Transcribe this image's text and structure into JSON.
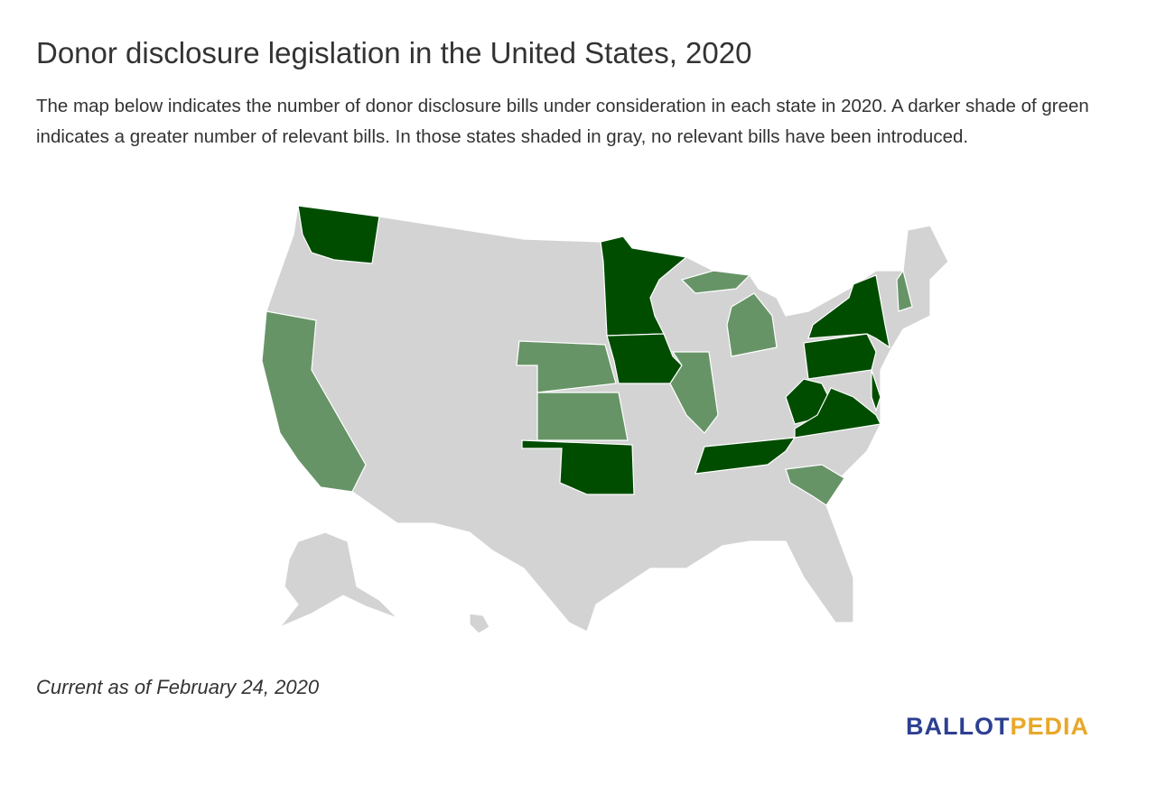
{
  "header": {
    "title": "Donor disclosure legislation in the United States, 2020",
    "description": "The map below indicates the number of donor disclosure bills under consideration in each state in 2020. A darker shade of green indicates a greater number of relevant bills. In those states shaded in gray, no relevant bills have been introduced."
  },
  "footnote": "Current as of February 24, 2020",
  "logo": {
    "first": "BALLOT",
    "second": "PEDIA"
  }
}
